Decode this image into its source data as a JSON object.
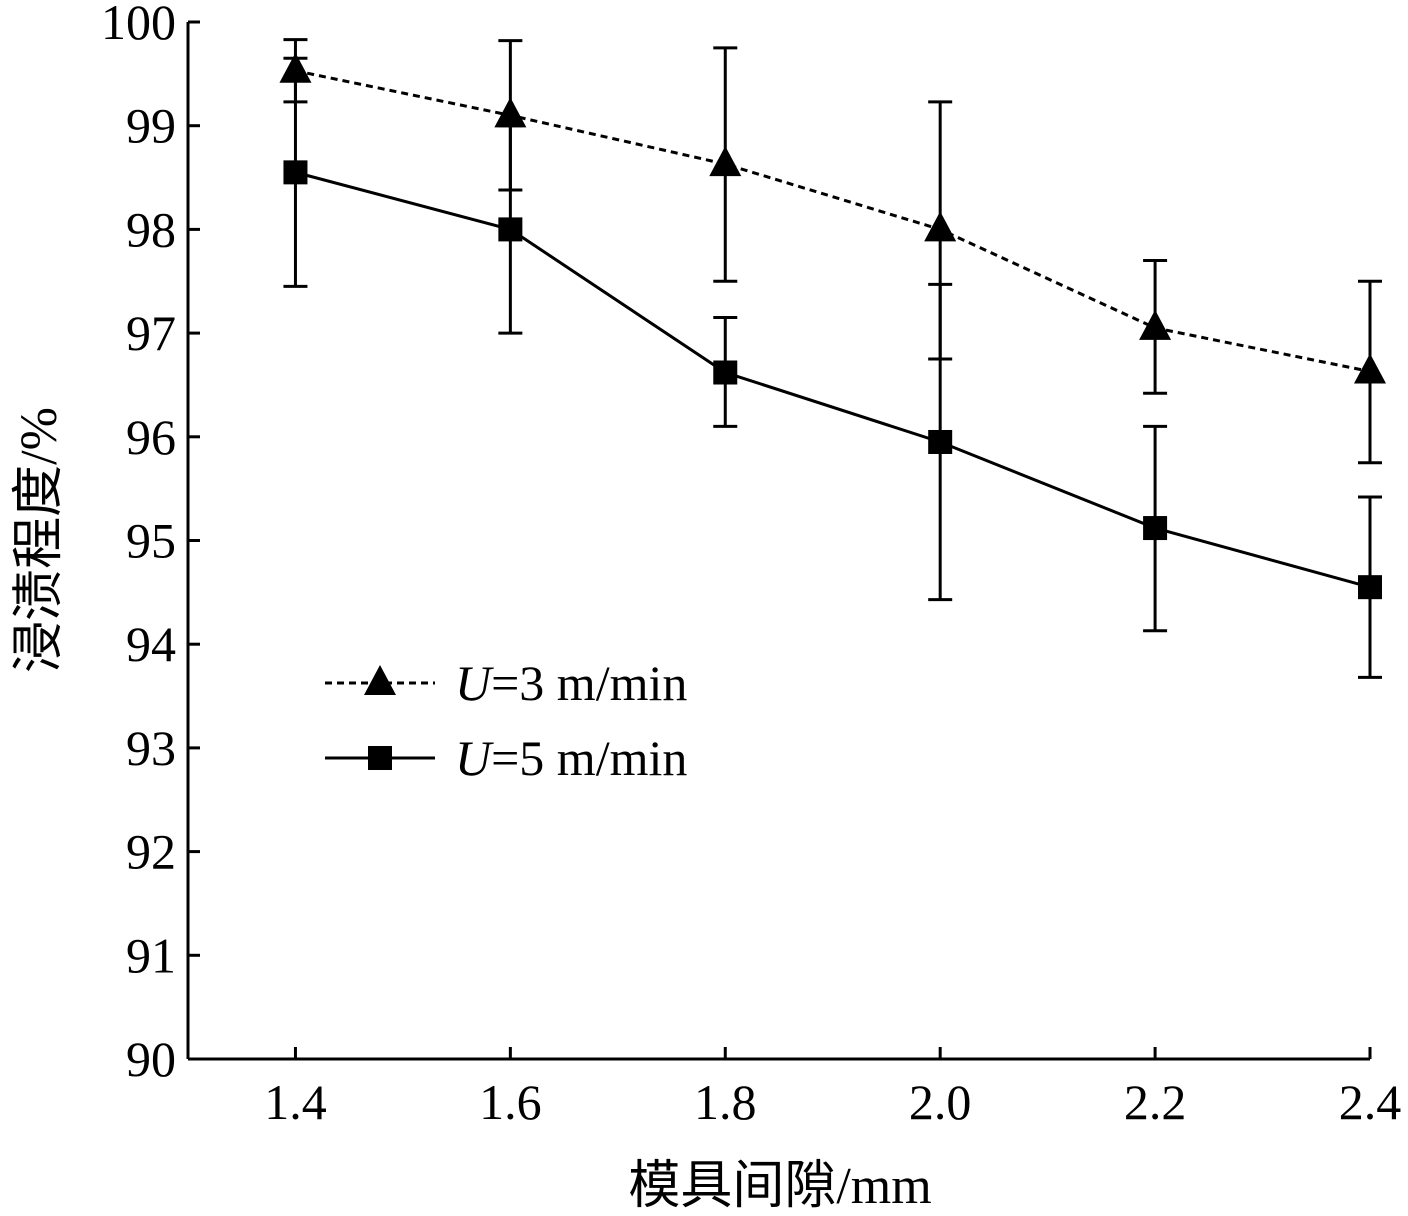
{
  "chart_data": {
    "type": "line",
    "title": "",
    "xlabel": "模具间隙/mm",
    "ylabel": "浸渍程度/%",
    "x": [
      1.4,
      1.6,
      1.8,
      2.0,
      2.2,
      2.4
    ],
    "x_tick_labels": [
      "1.4",
      "1.6",
      "1.8",
      "2.0",
      "2.2",
      "2.4"
    ],
    "y_tick_labels": [
      "90",
      "91",
      "92",
      "93",
      "94",
      "95",
      "96",
      "97",
      "98",
      "99",
      "100"
    ],
    "xlim": [
      1.3,
      2.4
    ],
    "ylim": [
      90,
      100
    ],
    "grid": false,
    "legend_position": "center-left",
    "series": [
      {
        "name": "U=3 m/min",
        "name_italic": "U",
        "name_rest": "=3 m/min",
        "line_style": "dashed",
        "marker": "triangle",
        "color": "#000000",
        "values": [
          99.53,
          99.1,
          98.63,
          98.0,
          97.05,
          96.63
        ],
        "error_low": [
          99.23,
          98.38,
          97.5,
          96.75,
          96.42,
          95.75
        ],
        "error_high": [
          99.83,
          99.82,
          99.75,
          99.23,
          97.7,
          97.5
        ]
      },
      {
        "name": "U=5 m/min",
        "name_italic": "U",
        "name_rest": "=5 m/min",
        "line_style": "solid",
        "marker": "square",
        "color": "#000000",
        "values": [
          98.55,
          98.0,
          96.62,
          95.95,
          95.12,
          94.55
        ],
        "error_low": [
          97.45,
          97.0,
          96.1,
          94.43,
          94.13,
          93.68
        ],
        "error_high": [
          99.65,
          99.0,
          97.15,
          97.47,
          96.1,
          95.42
        ]
      }
    ]
  }
}
